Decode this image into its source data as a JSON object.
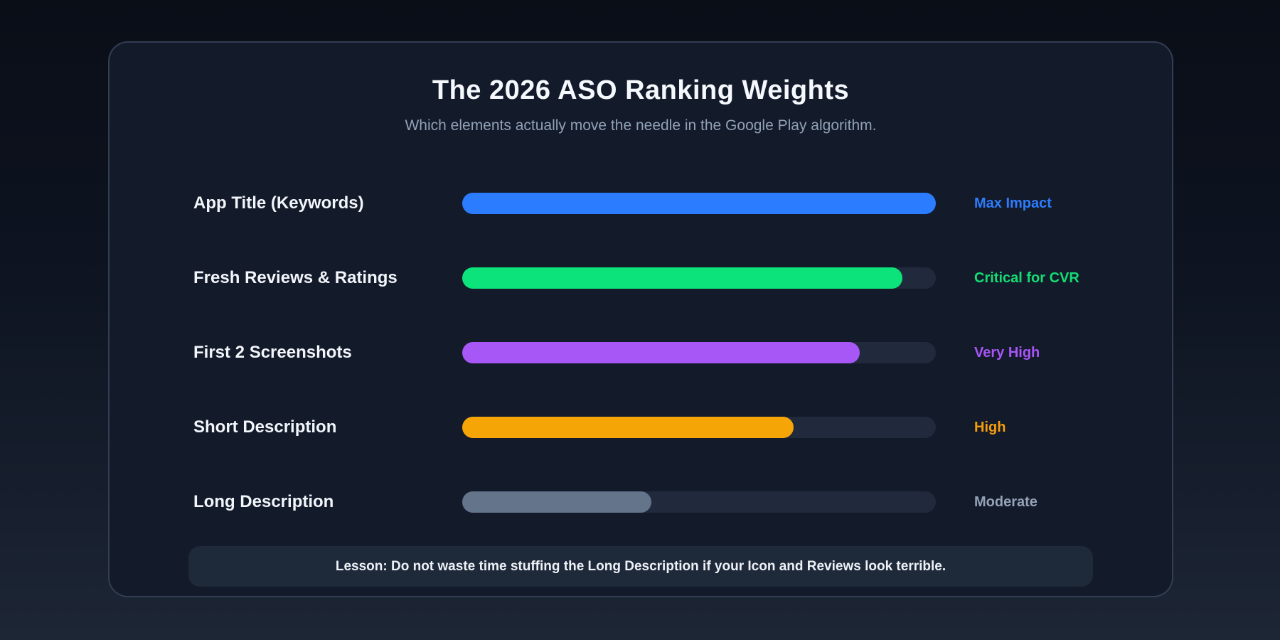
{
  "header": {
    "title": "The 2026 ASO Ranking Weights",
    "subtitle": "Which elements actually move the needle in the Google Play algorithm."
  },
  "rows": [
    {
      "label": "App Title (Keywords)",
      "impact": "Max Impact",
      "value_pct": 100,
      "bar_color": "#2b7cfe",
      "impact_color": "#2e7cfc"
    },
    {
      "label": "Fresh Reviews & Ratings",
      "impact": "Critical for CVR",
      "value_pct": 93,
      "bar_color": "#0ce47b",
      "impact_color": "#12de74"
    },
    {
      "label": "First 2 Screenshots",
      "impact": "Very High",
      "value_pct": 84,
      "bar_color": "#a757f6",
      "impact_color": "#a855f7"
    },
    {
      "label": "Short Description",
      "impact": "High",
      "value_pct": 70,
      "bar_color": "#f5a506",
      "impact_color": "#f59e0b"
    },
    {
      "label": "Long Description",
      "impact": "Moderate",
      "value_pct": 40,
      "bar_color": "#64748b",
      "impact_color": "#94a3b8"
    }
  ],
  "lesson": "Lesson: Do not waste time stuffing the Long Description if your Icon and Reviews look terrible.",
  "colors": {
    "page_bg_top": "#0a0e17",
    "page_bg_bottom": "#1d2635",
    "card_bg": "#131a2a",
    "card_border": "#60718c",
    "track_bg": "#202a3c",
    "title_text": "#f5f8fd",
    "subtitle_text": "#90a1b6",
    "label_text": "#f2f5fa",
    "lesson_bg": "#1e2939",
    "lesson_text": "#eef2f8"
  },
  "chart_data": {
    "type": "bar",
    "orientation": "horizontal",
    "title": "The 2026 ASO Ranking Weights",
    "subtitle": "Which elements actually move the needle in the Google Play algorithm.",
    "categories": [
      "App Title (Keywords)",
      "Fresh Reviews & Ratings",
      "First 2 Screenshots",
      "Short Description",
      "Long Description"
    ],
    "values": [
      100,
      93,
      84,
      70,
      40
    ],
    "value_axis_range": [
      0,
      100
    ],
    "value_labels": [
      "Max Impact",
      "Critical for CVR",
      "Very High",
      "High",
      "Moderate"
    ],
    "series_colors": [
      "#2b7cfe",
      "#0ce47b",
      "#a757f6",
      "#f5a506",
      "#64748b"
    ],
    "grid": false,
    "legend": false,
    "annotation": "Lesson: Do not waste time stuffing the Long Description if your Icon and Reviews look terrible."
  }
}
